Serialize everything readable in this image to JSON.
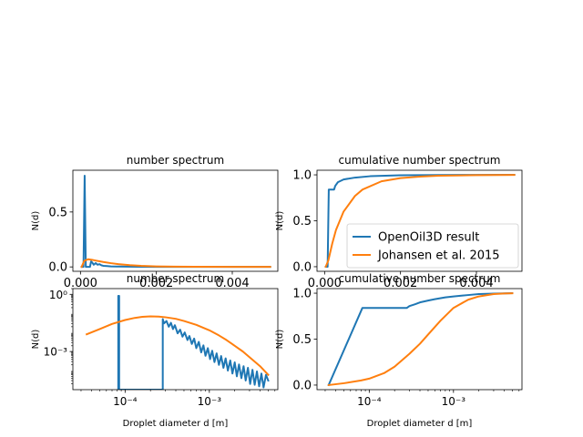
{
  "colors": {
    "openoil": "#1f77b4",
    "johansen": "#ff7f0e",
    "axis": "#000000",
    "background": "#ffffff"
  },
  "chart_data": [
    {
      "id": "ax1",
      "type": "line",
      "title": "number spectrum",
      "xlabel": "",
      "ylabel": "N(d)",
      "xscale": "linear",
      "yscale": "linear",
      "xlim": [
        -0.0002,
        0.0052
      ],
      "ylim": [
        -0.04,
        0.88
      ],
      "xticks": [
        0.0,
        0.002,
        0.004
      ],
      "xticklabels": [
        "0.000",
        "0.002",
        "0.004"
      ],
      "yticks": [
        0.0,
        0.5
      ],
      "yticklabels": [
        "0.0",
        "0.5"
      ],
      "grid": false,
      "legend": null,
      "series": [
        {
          "key": "openoil",
          "x": [
            3e-05,
            8e-05,
            0.00011,
            0.00014,
            0.00018,
            0.00022,
            0.00025,
            0.00028,
            0.00031,
            0.00035,
            0.0004,
            0.00045,
            0.0005,
            0.00055,
            0.0006,
            0.0007,
            0.0008,
            0.001,
            0.0015,
            0.002,
            0.003,
            0.004,
            0.005
          ],
          "y": [
            0.0,
            0.0,
            0.83,
            0.0,
            0.0,
            0.0,
            0.0,
            0.05,
            0.04,
            0.02,
            0.035,
            0.02,
            0.025,
            0.015,
            0.01,
            0.008,
            0.005,
            0.003,
            0.001,
            0.0005,
            0.0002,
            0.0001,
            0.0001
          ]
        },
        {
          "key": "johansen",
          "x": [
            3e-05,
            0.0001,
            0.0002,
            0.0003,
            0.0004,
            0.0006,
            0.0008,
            0.001,
            0.0013,
            0.0016,
            0.002,
            0.0025,
            0.003,
            0.004,
            0.005
          ],
          "y": [
            0.0,
            0.055,
            0.07,
            0.065,
            0.058,
            0.045,
            0.034,
            0.025,
            0.016,
            0.01,
            0.005,
            0.002,
            0.001,
            0.0003,
            0.0001
          ]
        }
      ]
    },
    {
      "id": "ax2",
      "type": "line",
      "title": "cumulative number spectrum",
      "xlabel": "",
      "ylabel": "N(d)",
      "xscale": "linear",
      "yscale": "linear",
      "xlim": [
        -0.0002,
        0.0052
      ],
      "ylim": [
        -0.05,
        1.05
      ],
      "xticks": [
        0.0,
        0.002,
        0.004
      ],
      "xticklabels": [
        "0.000",
        "0.002",
        "0.004"
      ],
      "yticks": [
        0.0,
        0.5,
        1.0
      ],
      "yticklabels": [
        "0.0",
        "0.5",
        "1.0"
      ],
      "grid": false,
      "legend": "lower-right",
      "legend_entries": [
        {
          "key": "openoil",
          "label": "OpenOil3D result"
        },
        {
          "key": "johansen",
          "label": "Johansen et al. 2015"
        }
      ],
      "series": [
        {
          "key": "openoil",
          "x": [
            3e-05,
            8e-05,
            0.00011,
            0.00025,
            0.00028,
            0.00035,
            0.0005,
            0.0008,
            0.0012,
            0.002,
            0.003,
            0.004,
            0.005
          ],
          "y": [
            0.0,
            0.0,
            0.84,
            0.84,
            0.88,
            0.92,
            0.95,
            0.97,
            0.985,
            0.995,
            0.998,
            0.999,
            1.0
          ]
        },
        {
          "key": "johansen",
          "x": [
            3e-05,
            0.0001,
            0.0002,
            0.0003,
            0.0005,
            0.0008,
            0.001,
            0.0015,
            0.002,
            0.0025,
            0.003,
            0.004,
            0.005
          ],
          "y": [
            0.0,
            0.07,
            0.25,
            0.4,
            0.6,
            0.77,
            0.84,
            0.93,
            0.965,
            0.98,
            0.99,
            0.997,
            0.999
          ]
        }
      ]
    },
    {
      "id": "ax3",
      "type": "line",
      "title": "number spectrum",
      "xlabel": "Droplet diameter d [m]",
      "ylabel": "N(d)",
      "xscale": "log",
      "yscale": "log",
      "xlim": [
        2.4e-05,
        0.0065
      ],
      "ylim": [
        1e-05,
        2.0
      ],
      "xticks": [
        0.0001,
        0.001
      ],
      "xticklabels": [
        "10⁻⁴",
        "10⁻³"
      ],
      "yticks": [
        0.001,
        1.0
      ],
      "yticklabels": [
        "10⁻³",
        "10⁰"
      ],
      "grid": false,
      "legend": null,
      "series": [
        {
          "key": "openoil",
          "x": [
            8.3e-05,
            8.3e-05,
            8.5e-05,
            8.5e-05,
            0.00028,
            0.00028,
            0.00029,
            0.00031,
            0.00033,
            0.00035,
            0.00037,
            0.00039,
            0.00042,
            0.00045,
            0.00048,
            0.00051,
            0.00055,
            0.00058,
            0.00062,
            0.00066,
            0.0007,
            0.00075,
            0.0008,
            0.00085,
            0.0009,
            0.00096,
            0.00102,
            0.00108,
            0.00115,
            0.00122,
            0.0013,
            0.00138,
            0.00147,
            0.00156,
            0.00166,
            0.00177,
            0.00188,
            0.002,
            0.00212,
            0.00225,
            0.0024,
            0.00255,
            0.0027,
            0.00287,
            0.00305,
            0.00325,
            0.00345,
            0.00367,
            0.0039,
            0.00415,
            0.0044,
            0.0047,
            0.005
          ],
          "y": [
            1e-05,
            0.83,
            0.83,
            1e-05,
            1e-05,
            0.05,
            0.03,
            0.04,
            0.02,
            0.032,
            0.015,
            0.024,
            0.009,
            0.014,
            0.006,
            0.01,
            0.004,
            0.0065,
            0.0025,
            0.0048,
            0.0015,
            0.0032,
            0.0009,
            0.0021,
            0.0006,
            0.0015,
            0.0004,
            0.0011,
            0.00028,
            0.0008,
            0.0002,
            0.00058,
            0.00014,
            0.00044,
            0.0001,
            0.00034,
            7e-05,
            0.00027,
            5e-05,
            0.00021,
            4e-05,
            0.00017,
            3e-05,
            0.00014,
            2e-05,
            0.00011,
            1.8e-05,
            9e-05,
            1.5e-05,
            7e-05,
            1.3e-05,
            6e-05,
            3e-05
          ]
        },
        {
          "key": "johansen",
          "x": [
            3.5e-05,
            5e-05,
            7e-05,
            0.0001,
            0.00013,
            0.00016,
            0.0002,
            0.00025,
            0.0003,
            0.0004,
            0.0005,
            0.0007,
            0.001,
            0.0013,
            0.0016,
            0.002,
            0.0025,
            0.003,
            0.004,
            0.005
          ],
          "y": [
            0.008,
            0.015,
            0.028,
            0.045,
            0.058,
            0.066,
            0.07,
            0.068,
            0.063,
            0.052,
            0.04,
            0.025,
            0.013,
            0.007,
            0.004,
            0.002,
            0.001,
            0.0005,
            0.00017,
            6e-05
          ]
        }
      ]
    },
    {
      "id": "ax4",
      "type": "line",
      "title": "cumulative number spectrum",
      "xlabel": "Droplet diameter d [m]",
      "ylabel": "N(d)",
      "xscale": "log",
      "yscale": "linear",
      "xlim": [
        2.4e-05,
        0.0065
      ],
      "ylim": [
        -0.05,
        1.05
      ],
      "xticks": [
        0.0001,
        0.001
      ],
      "xticklabels": [
        "10⁻⁴",
        "10⁻³"
      ],
      "yticks": [
        0.0,
        0.5,
        1.0
      ],
      "yticklabels": [
        "0.0",
        "0.5",
        "1.0"
      ],
      "grid": false,
      "legend": null,
      "series": [
        {
          "key": "openoil",
          "x": [
            3.3e-05,
            8.3e-05,
            8.5e-05,
            0.00028,
            0.0003,
            0.00035,
            0.0004,
            0.0005,
            0.0006,
            0.0008,
            0.001,
            0.0015,
            0.002,
            0.003,
            0.004,
            0.005
          ],
          "y": [
            0.0,
            0.84,
            0.84,
            0.84,
            0.86,
            0.88,
            0.9,
            0.92,
            0.935,
            0.955,
            0.965,
            0.98,
            0.99,
            0.995,
            0.998,
            1.0
          ]
        },
        {
          "key": "johansen",
          "x": [
            3.3e-05,
            5e-05,
            8e-05,
            0.0001,
            0.00015,
            0.0002,
            0.0003,
            0.0004,
            0.0005,
            0.0007,
            0.001,
            0.0015,
            0.002,
            0.003,
            0.004,
            0.005
          ],
          "y": [
            0.0,
            0.02,
            0.05,
            0.07,
            0.13,
            0.2,
            0.34,
            0.45,
            0.55,
            0.7,
            0.84,
            0.93,
            0.965,
            0.99,
            0.997,
            0.999
          ]
        }
      ]
    }
  ]
}
